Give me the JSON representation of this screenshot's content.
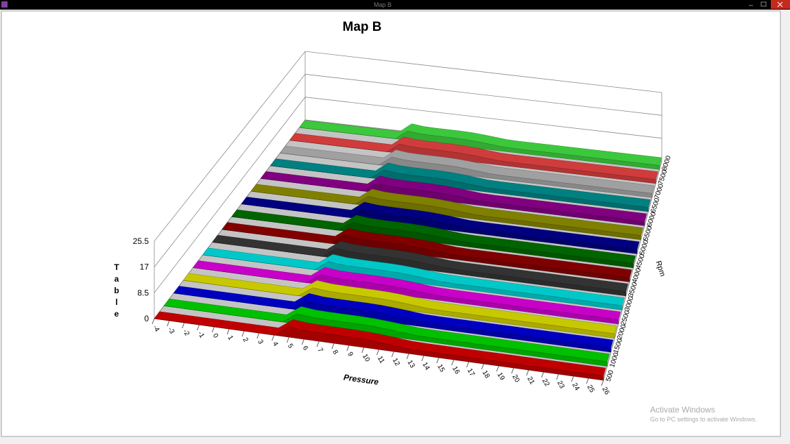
{
  "window": {
    "title": "Map B"
  },
  "chart_data": {
    "type": "surface3d",
    "title": "Map B",
    "x_label": "Pressure",
    "y_label": "Rpm",
    "z_label": "Table",
    "categories": [
      -4,
      -3,
      -2,
      -1,
      0,
      1,
      2,
      3,
      4,
      5,
      6,
      7,
      8,
      9,
      10,
      11,
      12,
      13,
      14,
      15,
      16,
      17,
      18,
      19,
      20,
      21,
      22,
      23,
      24,
      25,
      26
    ],
    "zlim": [
      0,
      25.5
    ],
    "zticks": [
      0,
      8.5,
      17,
      25.5
    ],
    "series": [
      {
        "name": "500",
        "color": "#c00000",
        "values": [
          0,
          0,
          0,
          0,
          0,
          0,
          0,
          0,
          0,
          3.4,
          2.9,
          2.8,
          2.8,
          2.8,
          2.7,
          2.4,
          2.0,
          1.6,
          1.5,
          1.5,
          1.5,
          1.5,
          1.5,
          1.5,
          1.5,
          1.5,
          1.5,
          1.5,
          1.5,
          1.5,
          1.5
        ]
      },
      {
        "name": "1000",
        "color": "#00c000",
        "values": [
          0,
          0,
          0,
          0,
          0,
          0,
          0,
          0,
          0,
          3.4,
          2.9,
          2.8,
          2.8,
          2.8,
          2.7,
          2.4,
          2.0,
          1.6,
          1.5,
          1.5,
          1.5,
          1.5,
          1.5,
          1.5,
          1.5,
          1.5,
          1.5,
          1.5,
          1.5,
          1.5,
          1.5
        ]
      },
      {
        "name": "1500",
        "color": "#0000c0",
        "values": [
          0,
          0,
          0,
          0,
          0,
          0,
          0,
          0,
          0,
          3.4,
          2.9,
          2.8,
          2.8,
          2.8,
          2.7,
          2.4,
          2.0,
          1.6,
          1.5,
          1.5,
          1.5,
          1.5,
          1.5,
          1.5,
          1.5,
          1.5,
          1.5,
          1.5,
          1.5,
          1.5,
          1.5
        ]
      },
      {
        "name": "2000",
        "color": "#c8c800",
        "values": [
          0,
          0,
          0,
          0,
          0,
          0,
          0,
          0,
          0,
          3.4,
          2.9,
          2.8,
          2.8,
          2.8,
          2.7,
          2.4,
          2.0,
          1.6,
          1.5,
          1.5,
          1.5,
          1.5,
          1.5,
          1.5,
          1.5,
          1.5,
          1.5,
          1.5,
          1.5,
          1.5,
          1.5
        ]
      },
      {
        "name": "2500",
        "color": "#c800c8",
        "values": [
          0,
          0,
          0,
          0,
          0,
          0,
          0,
          0,
          0,
          3.4,
          2.9,
          2.8,
          2.8,
          2.8,
          2.7,
          2.4,
          2.0,
          1.6,
          1.5,
          1.5,
          1.5,
          1.5,
          1.5,
          1.5,
          1.5,
          1.5,
          1.5,
          1.5,
          1.5,
          1.5,
          1.5
        ]
      },
      {
        "name": "3000",
        "color": "#00c8c8",
        "values": [
          0,
          0,
          0,
          0,
          0,
          0,
          0,
          0,
          0,
          3.4,
          2.9,
          2.8,
          2.8,
          2.8,
          2.7,
          2.4,
          2.0,
          1.6,
          1.5,
          1.5,
          1.5,
          1.5,
          1.5,
          1.5,
          1.5,
          1.5,
          1.5,
          1.5,
          1.5,
          1.5,
          1.5
        ]
      },
      {
        "name": "3500",
        "color": "#333333",
        "values": [
          0,
          0,
          0,
          0,
          0,
          0,
          0,
          0,
          0,
          3.4,
          2.9,
          2.8,
          2.8,
          2.8,
          2.7,
          2.4,
          2.0,
          1.6,
          1.5,
          1.5,
          1.5,
          1.5,
          1.5,
          1.5,
          1.5,
          1.5,
          1.5,
          1.5,
          1.5,
          1.5,
          1.5
        ]
      },
      {
        "name": "4000",
        "color": "#800000",
        "values": [
          0,
          0,
          0,
          0,
          0,
          0,
          0,
          0,
          0,
          3.4,
          2.9,
          2.8,
          2.8,
          2.8,
          2.7,
          2.4,
          2.0,
          1.6,
          1.5,
          1.5,
          1.5,
          1.5,
          1.5,
          1.5,
          1.5,
          1.5,
          1.5,
          1.5,
          1.5,
          1.5,
          1.5
        ]
      },
      {
        "name": "4500",
        "color": "#006400",
        "values": [
          0,
          0,
          0,
          0,
          0,
          0,
          0,
          0,
          0,
          3.4,
          2.9,
          2.8,
          2.8,
          2.8,
          2.7,
          2.4,
          2.0,
          1.6,
          1.5,
          1.5,
          1.5,
          1.5,
          1.5,
          1.5,
          1.5,
          1.5,
          1.5,
          1.5,
          1.5,
          1.5,
          1.5
        ]
      },
      {
        "name": "5000",
        "color": "#000080",
        "values": [
          0,
          0,
          0,
          0,
          0,
          0,
          0,
          0,
          0,
          3.4,
          2.9,
          2.8,
          2.8,
          2.8,
          2.7,
          2.4,
          2.0,
          1.6,
          1.5,
          1.5,
          1.5,
          1.5,
          1.5,
          1.5,
          1.5,
          1.5,
          1.5,
          1.5,
          1.5,
          1.5,
          1.5
        ]
      },
      {
        "name": "5500",
        "color": "#808000",
        "values": [
          0,
          0,
          0,
          0,
          0,
          0,
          0,
          0,
          0,
          3.4,
          2.9,
          2.8,
          2.8,
          2.8,
          2.7,
          2.4,
          2.0,
          1.6,
          1.5,
          1.5,
          1.5,
          1.5,
          1.5,
          1.5,
          1.5,
          1.5,
          1.5,
          1.5,
          1.5,
          1.5,
          1.5
        ]
      },
      {
        "name": "6000",
        "color": "#800080",
        "values": [
          0,
          0,
          0,
          0,
          0,
          0,
          0,
          0,
          0,
          3.4,
          2.9,
          2.8,
          2.8,
          2.8,
          2.7,
          2.4,
          2.0,
          1.6,
          1.5,
          1.5,
          1.5,
          1.5,
          1.5,
          1.5,
          1.5,
          1.5,
          1.5,
          1.5,
          1.5,
          1.5,
          1.5
        ]
      },
      {
        "name": "6500",
        "color": "#008080",
        "values": [
          0,
          0,
          0,
          0,
          0,
          0,
          0,
          0,
          0,
          3.4,
          2.9,
          2.8,
          2.8,
          2.8,
          2.7,
          2.4,
          2.0,
          1.6,
          1.5,
          1.5,
          1.5,
          1.5,
          1.5,
          1.5,
          1.5,
          1.5,
          1.5,
          1.5,
          1.5,
          1.5,
          1.5
        ]
      },
      {
        "name": "7000",
        "color": "#a0a0a0",
        "values": [
          0,
          0,
          0,
          0,
          0,
          0,
          0,
          0,
          0,
          3.4,
          2.9,
          2.8,
          2.8,
          2.8,
          2.7,
          2.4,
          2.0,
          1.6,
          1.5,
          1.5,
          1.5,
          1.5,
          1.5,
          1.5,
          1.5,
          1.5,
          1.5,
          1.5,
          1.5,
          1.5,
          1.5
        ]
      },
      {
        "name": "7500",
        "color": "#d03c3c",
        "values": [
          0,
          0,
          0,
          0,
          0,
          0,
          0,
          0,
          0,
          3.4,
          2.9,
          2.8,
          2.8,
          2.8,
          2.7,
          2.4,
          2.0,
          1.6,
          1.5,
          1.5,
          1.5,
          1.5,
          1.5,
          1.5,
          1.5,
          1.5,
          1.5,
          1.5,
          1.5,
          1.5,
          1.5
        ]
      },
      {
        "name": "8000",
        "color": "#3cc83c",
        "values": [
          0,
          0,
          0,
          0,
          0,
          0,
          0,
          0,
          0,
          3.4,
          2.9,
          2.8,
          2.8,
          2.8,
          2.7,
          2.4,
          2.0,
          1.6,
          1.5,
          1.5,
          1.5,
          1.5,
          1.5,
          1.5,
          1.5,
          1.5,
          1.5,
          1.5,
          1.5,
          1.5,
          1.5
        ]
      }
    ]
  },
  "watermark": {
    "title": "Activate Windows",
    "subtitle": "Go to PC settings to activate Windows."
  }
}
